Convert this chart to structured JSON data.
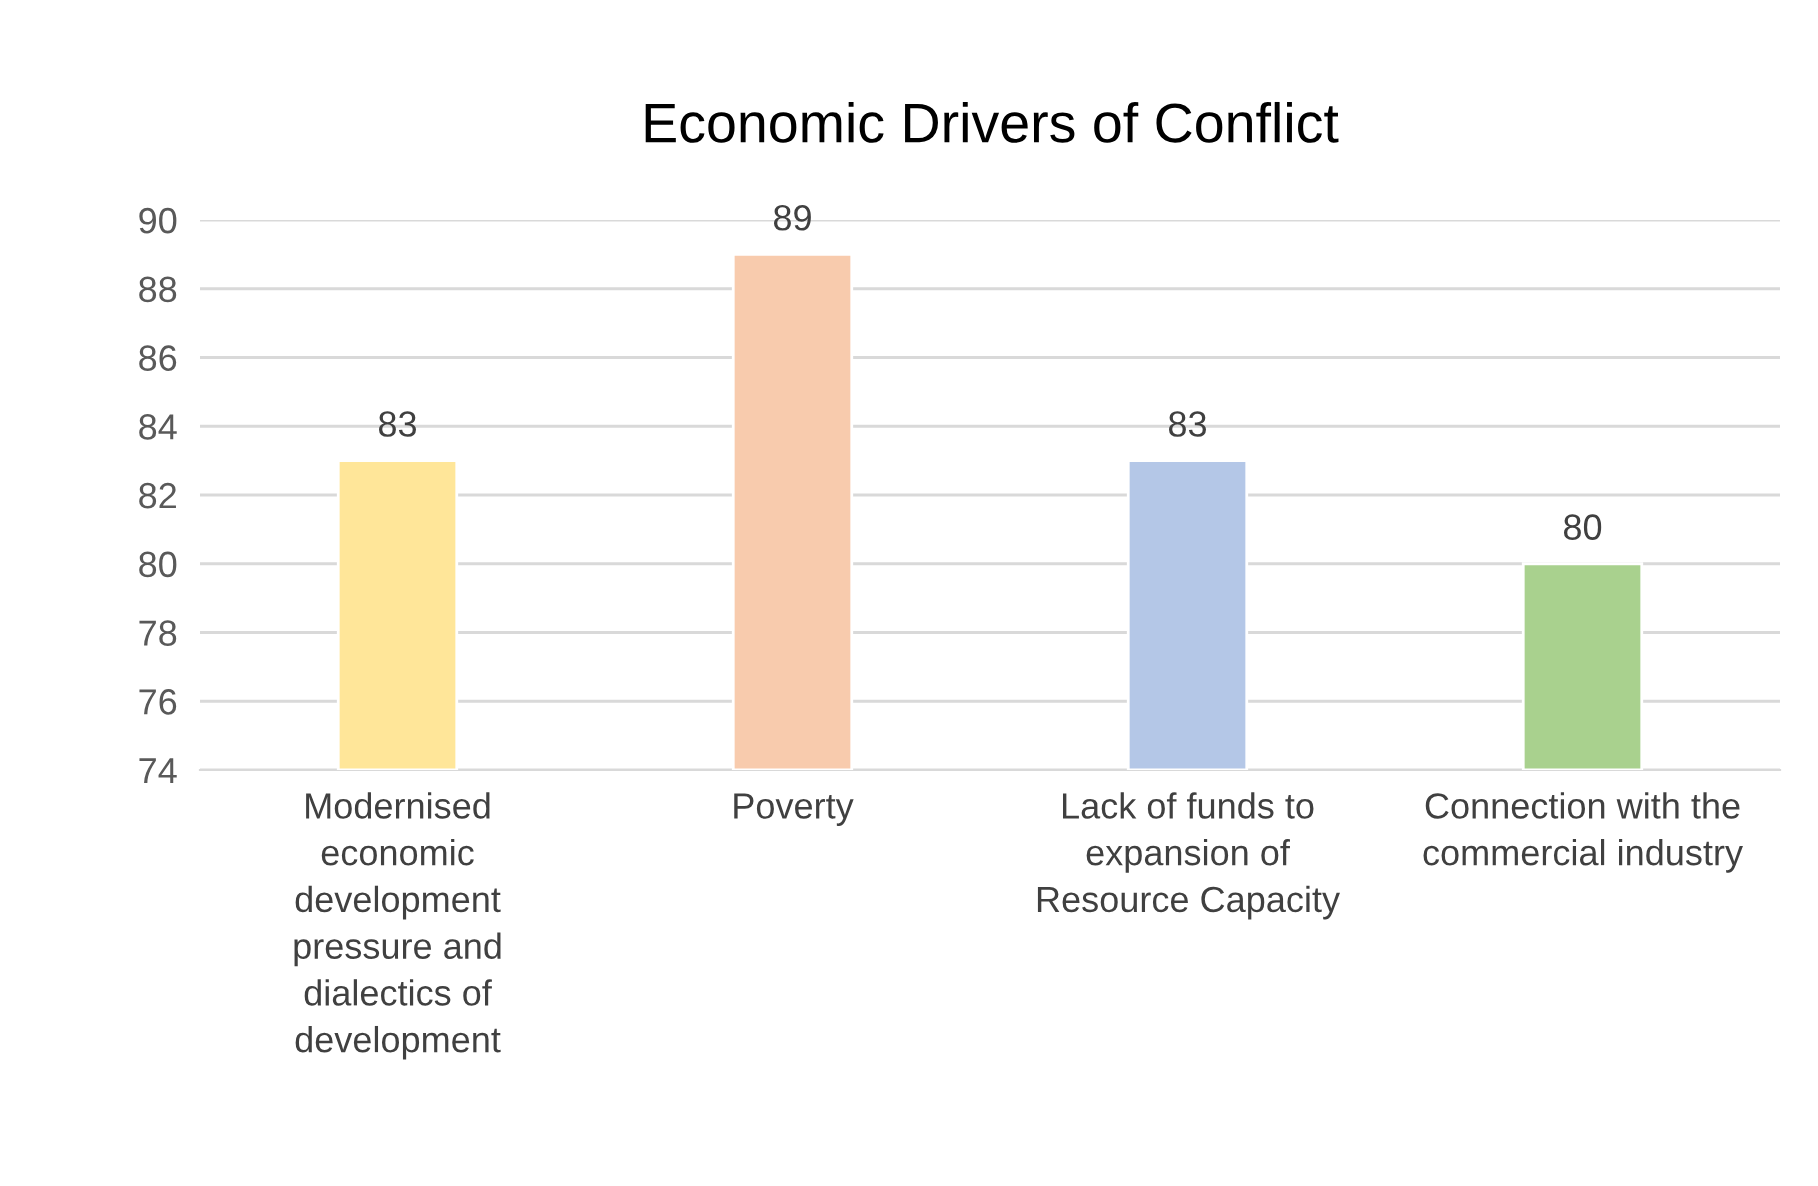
{
  "chart_data": {
    "type": "bar",
    "title": "Economic Drivers of Conflict",
    "categories": [
      "Modernised\neconomic\ndevelopment\npressure and\ndialectics of\ndevelopment",
      "Poverty",
      "Lack of funds to\nexpansion of\nResource Capacity",
      "Connection with the\ncommercial industry"
    ],
    "values": [
      83,
      89,
      83,
      80
    ],
    "colors": [
      "#ffe699",
      "#f8cbad",
      "#b4c7e7",
      "#a9d18e"
    ],
    "ylim": [
      74,
      90
    ],
    "yticks": [
      74,
      76,
      78,
      80,
      82,
      84,
      86,
      88,
      90
    ],
    "grid": "y",
    "data_labels": true
  }
}
